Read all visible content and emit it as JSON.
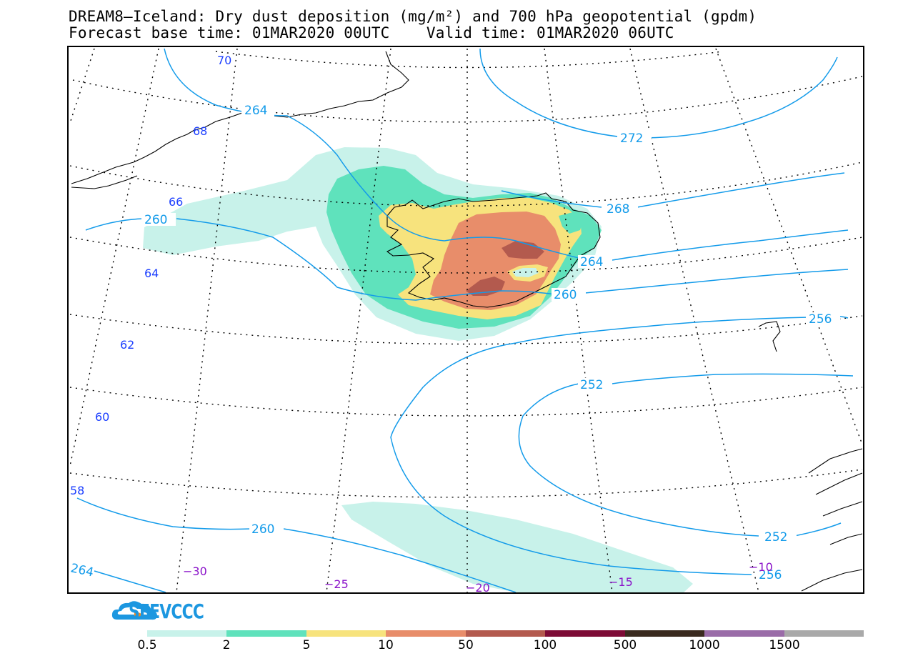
{
  "title": {
    "line1": "DREAM8—Iceland: Dry dust deposition (mg/m²) and 700 hPa geopotential (gpdm)",
    "line2": "Forecast base time: 01MAR2020 00UTC    Valid time: 01MAR2020 06UTC"
  },
  "colors": {
    "c05": "#c8f2ea",
    "c2": "#5fe2bc",
    "c5": "#f7e37d",
    "c10": "#e88d6a",
    "c50": "#b35a4e",
    "c100": "#7d0b36",
    "c500": "#3a2a1f",
    "c1000": "#9a6ca8",
    "c1500": "#a9a9a9",
    "contour": "#139bea",
    "lat_label": "#1c3fff",
    "lon_label": "#8a12c9"
  },
  "contour_labels": [
    "264",
    "272",
    "268",
    "260",
    "264",
    "260",
    "256",
    "252",
    "260",
    "252",
    "256",
    "264"
  ],
  "lat_labels": [
    "70",
    "68",
    "66",
    "64",
    "62",
    "60",
    "58"
  ],
  "lon_labels": [
    "−30",
    "−25",
    "−20",
    "−15",
    "−10"
  ],
  "logo": {
    "text": "SEEVCCC"
  },
  "colorbar": {
    "labels": [
      "0.5",
      "2",
      "5",
      "10",
      "50",
      "100",
      "500",
      "1000",
      "1500"
    ]
  }
}
